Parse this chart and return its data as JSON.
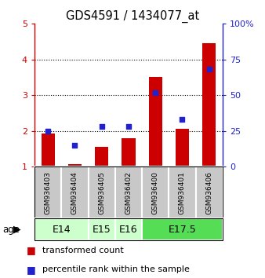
{
  "title": "GDS4591 / 1434077_at",
  "samples": [
    "GSM936403",
    "GSM936404",
    "GSM936405",
    "GSM936402",
    "GSM936400",
    "GSM936401",
    "GSM936406"
  ],
  "transformed_count": [
    1.92,
    1.07,
    1.55,
    1.8,
    3.52,
    2.07,
    4.45
  ],
  "percentile_rank": [
    25,
    15,
    28,
    28,
    52,
    33,
    68
  ],
  "ylim_left": [
    1,
    5
  ],
  "ylim_right": [
    0,
    100
  ],
  "yticks_left": [
    1,
    2,
    3,
    4,
    5
  ],
  "ytick_labels_right": [
    "0",
    "25",
    "50",
    "75",
    "100%"
  ],
  "red_color": "#cc0000",
  "blue_color": "#2222cc",
  "bar_width": 0.5,
  "age_groups": [
    {
      "label": "E14",
      "start": 0,
      "end": 1,
      "color": "#ccffcc"
    },
    {
      "label": "E15",
      "start": 2,
      "end": 2,
      "color": "#ccffcc"
    },
    {
      "label": "E16",
      "start": 3,
      "end": 3,
      "color": "#ccffcc"
    },
    {
      "label": "E17.5",
      "start": 4,
      "end": 6,
      "color": "#55dd55"
    }
  ],
  "sample_bg_color": "#c8c8c8",
  "legend_red_label": "transformed count",
  "legend_blue_label": "percentile rank within the sample",
  "age_label": "age"
}
